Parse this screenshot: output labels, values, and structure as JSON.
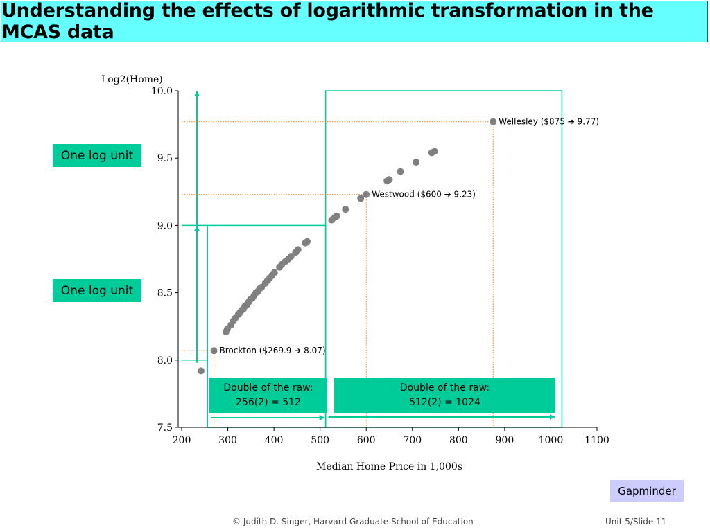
{
  "slide": {
    "title": "Understanding the effects of logarithmic transformation in the MCAS data",
    "footer_left": "© Judith D. Singer, Harvard Graduate School of Education",
    "footer_right": "Unit 5/Slide 11",
    "gapminder_label": "Gapminder",
    "log_unit_label": "One log unit",
    "double1_line1": "Double of the raw:",
    "double1_line2": "256(2) = 512",
    "double2_line1": "Double of the raw:",
    "double2_line2": "512(2) = 1024"
  },
  "colors": {
    "title_bg": "#66ffff",
    "accent_green": "#00cc99",
    "guide_orange": "#ff7700",
    "points": "#808080",
    "button_bg": "#ccccff"
  },
  "chart_data": {
    "type": "scatter",
    "title": "",
    "xlabel": "Median Home Price in 1,000s",
    "ylabel": "Log2(Home)",
    "xlim": [
      200,
      1100
    ],
    "ylim": [
      7.5,
      10.0
    ],
    "x_ticks": [
      "200",
      "300",
      "400",
      "500",
      "600",
      "700",
      "800",
      "900",
      "1000",
      "1100"
    ],
    "y_ticks": [
      "7.5",
      "8.0",
      "8.5",
      "9.0",
      "9.5",
      "10.0"
    ],
    "grid": false,
    "points": [
      {
        "x": 242,
        "y": 7.92
      },
      {
        "x": 269.9,
        "y": 8.07
      },
      {
        "x": 296,
        "y": 8.21
      },
      {
        "x": 299,
        "y": 8.23
      },
      {
        "x": 307,
        "y": 8.26
      },
      {
        "x": 312,
        "y": 8.29
      },
      {
        "x": 316,
        "y": 8.31
      },
      {
        "x": 323,
        "y": 8.34
      },
      {
        "x": 326,
        "y": 8.35
      },
      {
        "x": 330,
        "y": 8.37
      },
      {
        "x": 334,
        "y": 8.38
      },
      {
        "x": 337,
        "y": 8.4
      },
      {
        "x": 341,
        "y": 8.41
      },
      {
        "x": 345,
        "y": 8.43
      },
      {
        "x": 349,
        "y": 8.45
      },
      {
        "x": 353,
        "y": 8.46
      },
      {
        "x": 357,
        "y": 8.48
      },
      {
        "x": 361,
        "y": 8.5
      },
      {
        "x": 365,
        "y": 8.51
      },
      {
        "x": 369,
        "y": 8.53
      },
      {
        "x": 373,
        "y": 8.54
      },
      {
        "x": 381,
        "y": 8.57
      },
      {
        "x": 386,
        "y": 8.59
      },
      {
        "x": 391,
        "y": 8.61
      },
      {
        "x": 396,
        "y": 8.63
      },
      {
        "x": 401,
        "y": 8.65
      },
      {
        "x": 412,
        "y": 8.69
      },
      {
        "x": 417,
        "y": 8.71
      },
      {
        "x": 424,
        "y": 8.73
      },
      {
        "x": 431,
        "y": 8.75
      },
      {
        "x": 437,
        "y": 8.77
      },
      {
        "x": 447,
        "y": 8.8
      },
      {
        "x": 452,
        "y": 8.82
      },
      {
        "x": 468,
        "y": 8.87
      },
      {
        "x": 472,
        "y": 8.88
      },
      {
        "x": 525,
        "y": 9.04
      },
      {
        "x": 532,
        "y": 9.06
      },
      {
        "x": 536,
        "y": 9.07
      },
      {
        "x": 555,
        "y": 9.12
      },
      {
        "x": 588,
        "y": 9.2
      },
      {
        "x": 600,
        "y": 9.23
      },
      {
        "x": 645,
        "y": 9.33
      },
      {
        "x": 650,
        "y": 9.34
      },
      {
        "x": 674,
        "y": 9.4
      },
      {
        "x": 708,
        "y": 9.47
      },
      {
        "x": 742,
        "y": 9.54
      },
      {
        "x": 748,
        "y": 9.55
      },
      {
        "x": 875,
        "y": 9.77
      }
    ],
    "annotations": [
      {
        "label": "Wellesley ($875 ➔ 9.77)",
        "x": 875,
        "y": 9.77
      },
      {
        "label": "Westwood ($600 ➔ 9.23)",
        "x": 600,
        "y": 9.23
      },
      {
        "label": "Brockton ($269.9 ➔ 8.07)",
        "x": 269.9,
        "y": 8.07
      }
    ]
  }
}
